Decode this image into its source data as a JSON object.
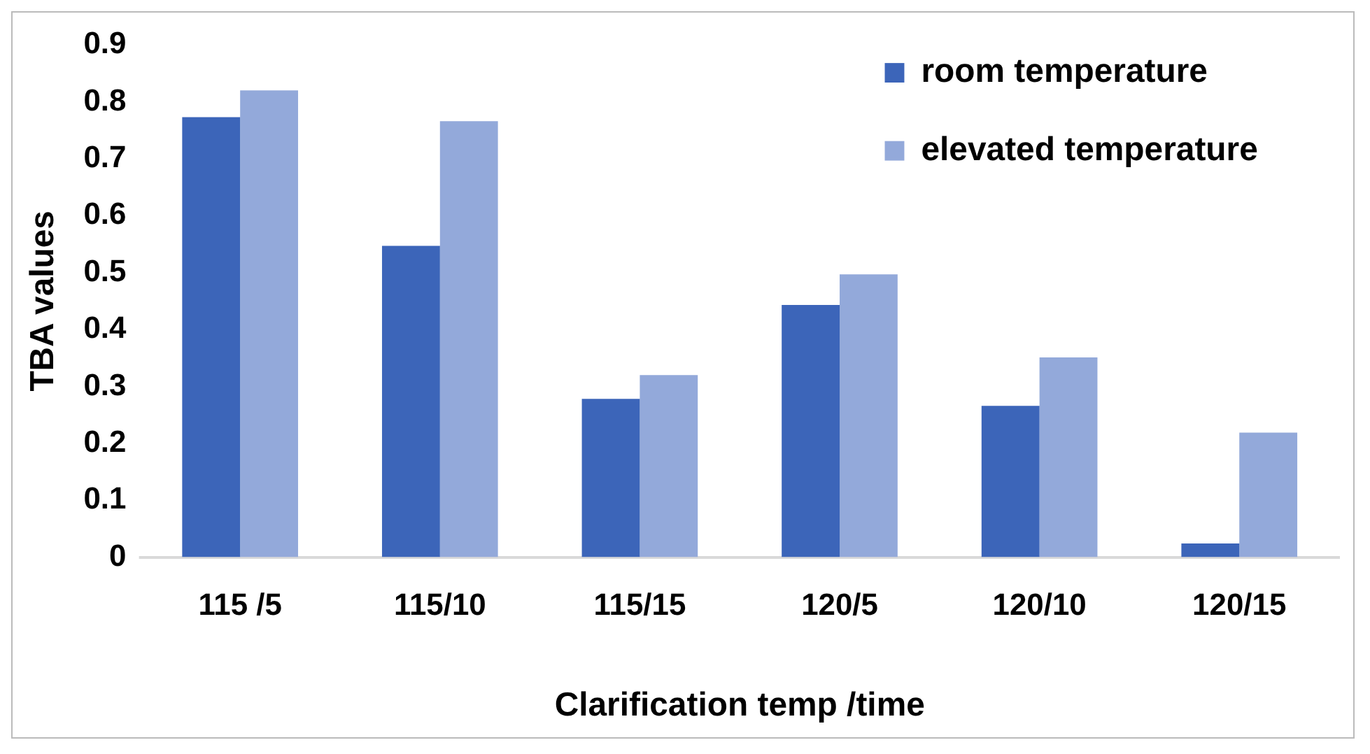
{
  "chart_data": {
    "type": "bar",
    "xlabel": "Clarification temp /time",
    "ylabel": "TBA values",
    "categories": [
      "115 /5",
      "115/10",
      "115/15",
      "120/5",
      "120/10",
      "120/15"
    ],
    "series": [
      {
        "name": "room temperature",
        "color": "#3c65b9",
        "values": [
          0.773,
          0.547,
          0.278,
          0.443,
          0.266,
          0.024
        ]
      },
      {
        "name": "elevated temperature",
        "color": "#93a9da",
        "values": [
          0.82,
          0.766,
          0.32,
          0.497,
          0.351,
          0.219
        ]
      }
    ],
    "ylim": [
      0,
      0.9
    ],
    "yticks": [
      0,
      0.1,
      0.2,
      0.3,
      0.4,
      0.5,
      0.6,
      0.7,
      0.8,
      0.9
    ],
    "grid": false,
    "legend": "top right"
  }
}
